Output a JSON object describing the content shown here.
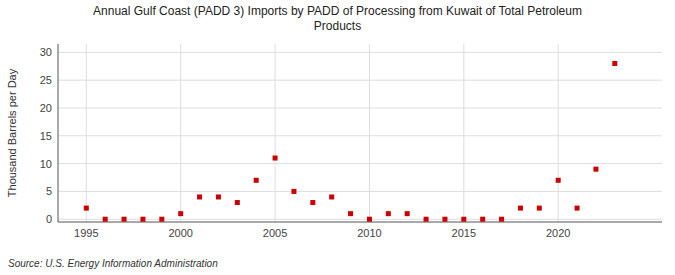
{
  "chart_data": {
    "type": "scatter",
    "title": "Annual Gulf Coast (PADD 3) Imports by PADD of Processing from Kuwait of Total Petroleum\nProducts",
    "y_label": "Thousand Barrels per Day",
    "source": "Source: U.S. Energy Information Administration",
    "color": "#cc0000",
    "marker": "square",
    "grid": true,
    "xlim": [
      1993.5,
      2025.5
    ],
    "ylim": [
      -0.5,
      31.5
    ],
    "xticks": [
      1995,
      2000,
      2005,
      2010,
      2015,
      2020
    ],
    "yticks": [
      0,
      5,
      10,
      15,
      20,
      25,
      30
    ],
    "x": [
      1995,
      1996,
      1997,
      1998,
      1999,
      2000,
      2001,
      2002,
      2003,
      2004,
      2005,
      2006,
      2007,
      2008,
      2009,
      2010,
      2011,
      2012,
      2013,
      2014,
      2015,
      2016,
      2017,
      2018,
      2019,
      2020,
      2021,
      2022,
      2023
    ],
    "values": [
      2.0,
      0.0,
      0.0,
      0.0,
      0.0,
      1.0,
      4.0,
      4.0,
      3.0,
      7.0,
      11.0,
      5.0,
      3.0,
      4.0,
      1.0,
      0.0,
      1.0,
      1.0,
      0.0,
      0.0,
      0.0,
      0.0,
      0.0,
      2.0,
      2.0,
      7.0,
      2.0,
      9.0,
      28.0
    ]
  }
}
